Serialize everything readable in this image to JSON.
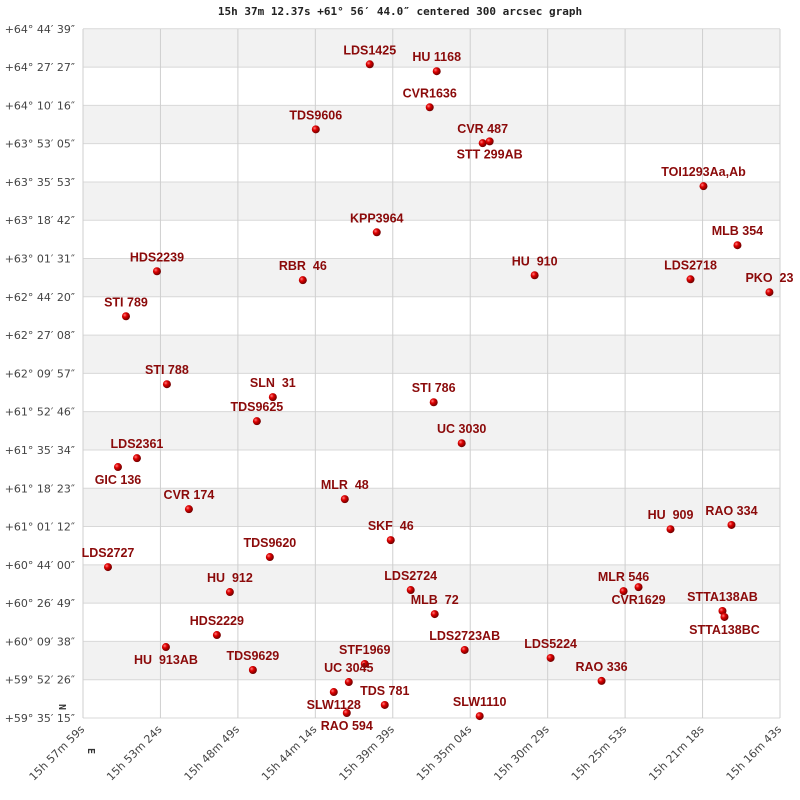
{
  "chart_data": {
    "type": "scatter",
    "title": "15h 37m 12.37s +61° 56′ 44.0″ centered 300 arcsec graph",
    "x_units": "RA seconds after 15h 00m 00s (decreasing to the right)",
    "y_units": "Dec arcminutes after +59°",
    "xlim": [
      3479,
      1004
    ],
    "ylim": [
      35.25,
      344.55
    ],
    "grid": true,
    "compass": {
      "north": "N",
      "east": "E"
    },
    "x_ticks": [
      {
        "v": 3479,
        "label": "15h 57m 59s"
      },
      {
        "v": 3204,
        "label": "15h 53m 24s"
      },
      {
        "v": 2929,
        "label": "15h 48m 49s"
      },
      {
        "v": 2654,
        "label": "15h 44m 14s"
      },
      {
        "v": 2379,
        "label": "15h 39m 39s"
      },
      {
        "v": 2104,
        "label": "15h 35m 04s"
      },
      {
        "v": 1829,
        "label": "15h 30m 29s"
      },
      {
        "v": 1554,
        "label": "15h 25m 53s"
      },
      {
        "v": 1279,
        "label": "15h 21m 18s"
      },
      {
        "v": 1004,
        "label": "15h 16m 43s"
      }
    ],
    "y_ticks": [
      {
        "v": 35.25,
        "label": "+59° 35′ 15″"
      },
      {
        "v": 52.43,
        "label": "+59° 52′ 26″"
      },
      {
        "v": 69.63,
        "label": "+60° 09′ 38″"
      },
      {
        "v": 86.82,
        "label": "+60° 26′ 49″"
      },
      {
        "v": 104.0,
        "label": "+60° 44′ 00″"
      },
      {
        "v": 121.2,
        "label": "+61° 01′ 12″"
      },
      {
        "v": 138.38,
        "label": "+61° 18′ 23″"
      },
      {
        "v": 155.57,
        "label": "+61° 35′ 34″"
      },
      {
        "v": 172.77,
        "label": "+61° 52′ 46″"
      },
      {
        "v": 189.95,
        "label": "+62° 09′ 57″"
      },
      {
        "v": 207.13,
        "label": "+62° 27′ 08″"
      },
      {
        "v": 224.33,
        "label": "+62° 44′ 20″"
      },
      {
        "v": 241.52,
        "label": "+63° 01′ 31″"
      },
      {
        "v": 258.7,
        "label": "+63° 18′ 42″"
      },
      {
        "v": 275.88,
        "label": "+63° 35′ 53″"
      },
      {
        "v": 293.08,
        "label": "+63° 53′ 05″"
      },
      {
        "v": 310.27,
        "label": "+64° 10′ 16″"
      },
      {
        "v": 327.45,
        "label": "+64° 27′ 27″"
      },
      {
        "v": 344.65,
        "label": "+64° 44′ 39″"
      }
    ],
    "points": [
      {
        "name": "LDS1425",
        "ra": 2460.7,
        "dec": 328.7
      },
      {
        "name": "HU 1168",
        "ra": 2223.0,
        "dec": 325.6
      },
      {
        "name": "CVR1636",
        "ra": 2247.8,
        "dec": 309.4
      },
      {
        "name": "TDS9606",
        "ra": 2652.3,
        "dec": 299.5
      },
      {
        "name": "CVR 487",
        "ra": 2059.8,
        "dec": 293.3
      },
      {
        "name": "STT 299AB",
        "ra": 2035.0,
        "dec": 294.1
      },
      {
        "name": "TOI1293Aa,Ab",
        "ra": 1275.7,
        "dec": 274.0
      },
      {
        "name": "KPP3964",
        "ra": 2435.9,
        "dec": 253.3
      },
      {
        "name": "MLB 354",
        "ra": 1155.1,
        "dec": 247.5
      },
      {
        "name": "HDS2239",
        "ra": 3216.4,
        "dec": 235.8
      },
      {
        "name": "RBR  46",
        "ra": 2698.4,
        "dec": 231.8
      },
      {
        "name": "HU  910",
        "ra": 1875.3,
        "dec": 234.0
      },
      {
        "name": "LDS2718",
        "ra": 1321.8,
        "dec": 232.2
      },
      {
        "name": "PKO  23",
        "ra": 1041.5,
        "dec": 226.4
      },
      {
        "name": "STI 789",
        "ra": 3326.4,
        "dec": 215.6
      },
      {
        "name": "STI 788",
        "ra": 3181.0,
        "dec": 185.1
      },
      {
        "name": "SLN  31",
        "ra": 2804.9,
        "dec": 179.3
      },
      {
        "name": "TDS9625",
        "ra": 2861.6,
        "dec": 168.5
      },
      {
        "name": "STI 786",
        "ra": 2233.7,
        "dec": 177.0
      },
      {
        "name": "UC 3030",
        "ra": 2134.3,
        "dec": 158.6
      },
      {
        "name": "LDS2361",
        "ra": 3287.4,
        "dec": 151.9
      },
      {
        "name": "GIC 136",
        "ra": 3354.8,
        "dec": 147.9
      },
      {
        "name": "MLR  48",
        "ra": 2549.4,
        "dec": 133.5
      },
      {
        "name": "CVR 174",
        "ra": 3102.9,
        "dec": 129.0
      },
      {
        "name": "SKF  46",
        "ra": 2386.2,
        "dec": 115.1
      },
      {
        "name": "HU  909",
        "ra": 1392.8,
        "dec": 120.0
      },
      {
        "name": "RAO 334",
        "ra": 1176.3,
        "dec": 121.9
      },
      {
        "name": "LDS2727",
        "ra": 3390.3,
        "dec": 103.0
      },
      {
        "name": "TDS9620",
        "ra": 2815.5,
        "dec": 107.5
      },
      {
        "name": "HU  912",
        "ra": 2957.4,
        "dec": 91.8
      },
      {
        "name": "LDS2724",
        "ra": 2315.3,
        "dec": 92.7
      },
      {
        "name": "MLB  72",
        "ra": 2230.1,
        "dec": 81.9
      },
      {
        "name": "MLR 546",
        "ra": 1559.5,
        "dec": 92.2
      },
      {
        "name": "CVR1629",
        "ra": 1506.3,
        "dec": 94.0
      },
      {
        "name": "STTA138AB",
        "ra": 1208.3,
        "dec": 83.3
      },
      {
        "name": "STTA138BC",
        "ra": 1201.2,
        "dec": 80.6
      },
      {
        "name": "HDS2229",
        "ra": 3003.6,
        "dec": 72.5
      },
      {
        "name": "HU  913AB",
        "ra": 3184.5,
        "dec": 67.1
      },
      {
        "name": "LDS2723AB",
        "ra": 2123.7,
        "dec": 65.8
      },
      {
        "name": "LDS5224",
        "ra": 1818.5,
        "dec": 62.2
      },
      {
        "name": "TDS9629",
        "ra": 2875.8,
        "dec": 56.8
      },
      {
        "name": "STF1969",
        "ra": 2478.5,
        "dec": 59.5
      },
      {
        "name": "UC 3045",
        "ra": 2535.2,
        "dec": 51.4
      },
      {
        "name": "RAO 336",
        "ra": 1637.6,
        "dec": 51.9
      },
      {
        "name": "SLW1128",
        "ra": 2588.5,
        "dec": 46.9
      },
      {
        "name": "TDS 781",
        "ra": 2407.5,
        "dec": 41.1
      },
      {
        "name": "RAO 594",
        "ra": 2542.3,
        "dec": 37.5
      },
      {
        "name": "SLW1110",
        "ra": 2070.4,
        "dec": 36.1
      }
    ]
  }
}
